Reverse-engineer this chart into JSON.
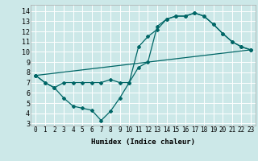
{
  "xlabel": "Humidex (Indice chaleur)",
  "bg_color": "#cce8e8",
  "line_color": "#006666",
  "xlim": [
    -0.5,
    23.5
  ],
  "ylim": [
    2.8,
    14.6
  ],
  "xticks": [
    0,
    1,
    2,
    3,
    4,
    5,
    6,
    7,
    8,
    9,
    10,
    11,
    12,
    13,
    14,
    15,
    16,
    17,
    18,
    19,
    20,
    21,
    22,
    23
  ],
  "yticks": [
    3,
    4,
    5,
    6,
    7,
    8,
    9,
    10,
    11,
    12,
    13,
    14
  ],
  "line1_x": [
    0,
    1,
    2,
    3,
    4,
    5,
    6,
    7,
    8,
    9,
    10,
    11,
    12,
    13,
    14,
    15,
    16,
    17,
    18,
    19,
    20,
    21,
    22,
    23
  ],
  "line1_y": [
    7.7,
    7.0,
    6.5,
    7.0,
    7.0,
    7.0,
    7.0,
    7.0,
    7.3,
    7.0,
    7.0,
    10.5,
    11.5,
    12.2,
    13.2,
    13.5,
    13.5,
    13.8,
    13.5,
    12.7,
    11.8,
    11.0,
    10.5,
    10.2
  ],
  "line2_x": [
    0,
    1,
    2,
    3,
    4,
    5,
    6,
    7,
    8,
    9,
    10,
    11,
    12,
    13,
    14,
    15,
    16,
    17,
    18,
    19,
    20,
    21,
    22,
    23
  ],
  "line2_y": [
    7.7,
    7.0,
    6.5,
    5.5,
    4.7,
    4.5,
    4.3,
    3.3,
    4.2,
    5.5,
    7.0,
    8.5,
    9.0,
    12.5,
    13.2,
    13.5,
    13.5,
    13.8,
    13.5,
    12.7,
    11.8,
    11.0,
    10.5,
    10.2
  ],
  "line3_x": [
    0,
    23
  ],
  "line3_y": [
    7.7,
    10.2
  ],
  "tick_fontsize": 5.5,
  "xlabel_fontsize": 6.5,
  "grid_color": "#ffffff",
  "marker_size": 2.0,
  "lw": 0.9
}
